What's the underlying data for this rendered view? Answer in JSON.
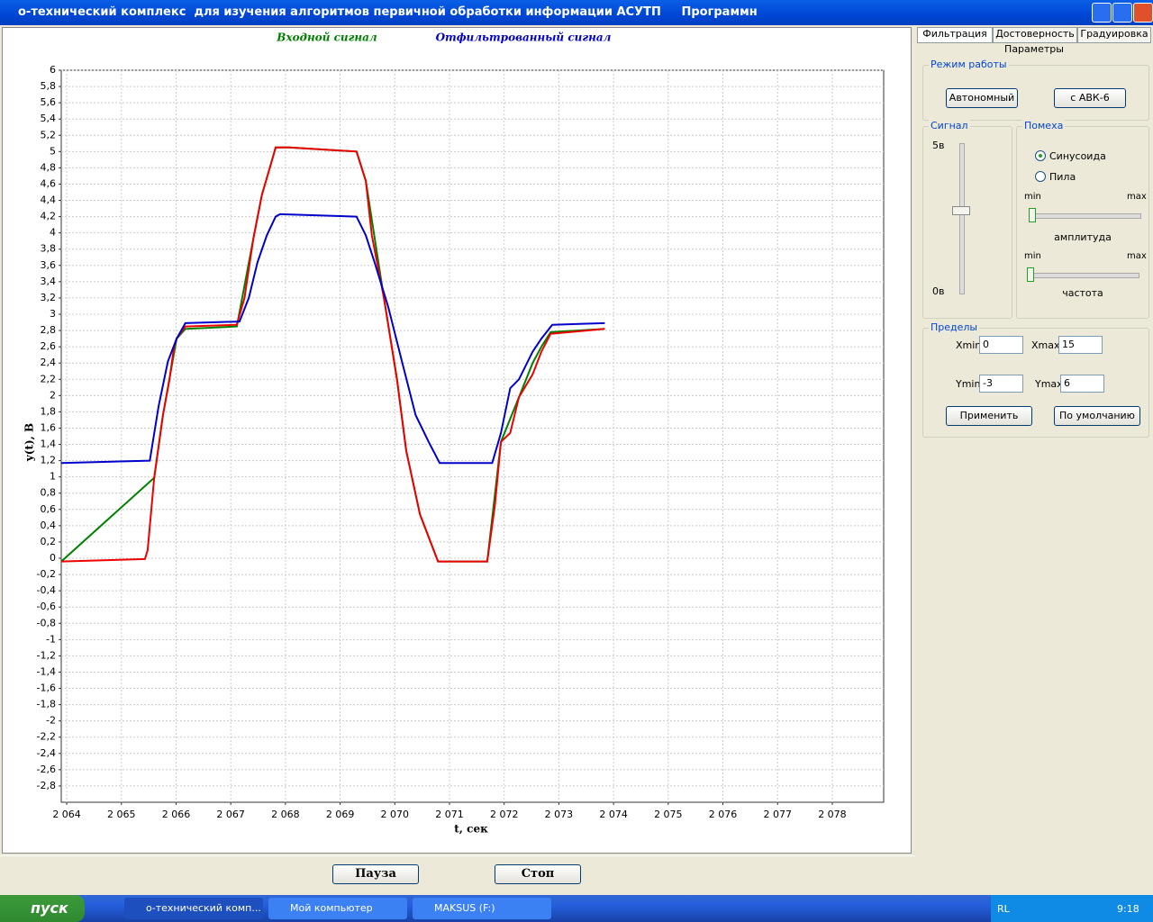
{
  "window": {
    "title": "о-технический комплекс  для изучения алгоритмов первичной обработки информации АСУТП     Программн"
  },
  "chart_data": {
    "type": "line",
    "y_label": "y(t), В",
    "x_label": "t, сек",
    "xlim": [
      2063.9,
      2078.94
    ],
    "ylim": [
      -3,
      6
    ],
    "grid": true,
    "xticks": [
      {
        "value": 2064,
        "label": "2 064"
      },
      {
        "value": 2065,
        "label": "2 065"
      },
      {
        "value": 2066,
        "label": "2 066"
      },
      {
        "value": 2067,
        "label": "2 067"
      },
      {
        "value": 2068,
        "label": "2 068"
      },
      {
        "value": 2069,
        "label": "2 069"
      },
      {
        "value": 2070,
        "label": "2 070"
      },
      {
        "value": 2071,
        "label": "2 071"
      },
      {
        "value": 2072,
        "label": "2 072"
      },
      {
        "value": 2073,
        "label": "2 073"
      },
      {
        "value": 2074,
        "label": "2 074"
      },
      {
        "value": 2075,
        "label": "2 075"
      },
      {
        "value": 2076,
        "label": "2 076"
      },
      {
        "value": 2077,
        "label": "2 077"
      },
      {
        "value": 2078,
        "label": "2 078"
      }
    ],
    "yticks": [
      6,
      {
        "value": 5.8,
        "label": "5,8"
      },
      {
        "value": 5.6,
        "label": "5,6"
      },
      {
        "value": 5.4,
        "label": "5,4"
      },
      {
        "value": 5.2,
        "label": "5,2"
      },
      5,
      {
        "value": 4.8,
        "label": "4,8"
      },
      {
        "value": 4.6,
        "label": "4,6"
      },
      {
        "value": 4.4,
        "label": "4,4"
      },
      {
        "value": 4.2,
        "label": "4,2"
      },
      4,
      {
        "value": 3.8,
        "label": "3,8"
      },
      {
        "value": 3.6,
        "label": "3,6"
      },
      {
        "value": 3.4,
        "label": "3,4"
      },
      {
        "value": 3.2,
        "label": "3,2"
      },
      3,
      {
        "value": 2.8,
        "label": "2,8"
      },
      {
        "value": 2.6,
        "label": "2,6"
      },
      {
        "value": 2.4,
        "label": "2,4"
      },
      {
        "value": 2.2,
        "label": "2,2"
      },
      2,
      {
        "value": 1.8,
        "label": "1,8"
      },
      {
        "value": 1.6,
        "label": "1,6"
      },
      {
        "value": 1.4,
        "label": "1,4"
      },
      {
        "value": 1.2,
        "label": "1,2"
      },
      1,
      {
        "value": 0.8,
        "label": "0,8"
      },
      {
        "value": 0.6,
        "label": "0,6"
      },
      {
        "value": 0.4,
        "label": "0,4"
      },
      {
        "value": 0.2,
        "label": "0,2"
      },
      0,
      {
        "value": -0.2,
        "label": "-0,2"
      },
      {
        "value": -0.4,
        "label": "-0,4"
      },
      {
        "value": -0.6,
        "label": "-0,6"
      },
      {
        "value": -0.8,
        "label": "-0,8"
      },
      -1,
      {
        "value": -1.2,
        "label": "-1,2"
      },
      {
        "value": -1.4,
        "label": "-1,4"
      },
      {
        "value": -1.6,
        "label": "-1,6"
      },
      {
        "value": -1.8,
        "label": "-1,8"
      },
      -2,
      {
        "value": -2.2,
        "label": "-2,2"
      },
      {
        "value": -2.4,
        "label": "-2,4"
      },
      {
        "value": -2.6,
        "label": "-2,6"
      },
      {
        "value": -2.8,
        "label": "-2,8"
      }
    ],
    "series": [
      {
        "name": "Входной сигнал",
        "color": "#008000",
        "x": [
          2063.9,
          2065.6,
          2065.76,
          2066.01,
          2066.17,
          2067.11,
          2067.41,
          2067.57,
          2067.74,
          2067.82,
          2068.07,
          2069.3,
          2069.47,
          2069.8,
          2070.04,
          2070.21,
          2070.46,
          2070.79,
          2071.69,
          2071.94,
          2072.27,
          2072.52,
          2072.68,
          2072.85,
          2073.84
        ],
        "values": [
          -0.04,
          0.99,
          1.76,
          2.7,
          2.82,
          2.85,
          3.92,
          4.47,
          4.86,
          5.05,
          5.05,
          5.0,
          4.64,
          3.2,
          2.2,
          1.32,
          0.54,
          -0.04,
          -0.04,
          1.43,
          1.98,
          2.4,
          2.6,
          2.78,
          2.82
        ]
      },
      {
        "color": "#ee0000",
        "x": [
          2063.9,
          2065.43,
          2065.48,
          2065.6,
          2065.76,
          2065.88,
          2065.96,
          2066.01,
          2066.17,
          2067.11,
          2067.25,
          2067.41,
          2067.57,
          2067.74,
          2067.82,
          2068.07,
          2069.3,
          2069.47,
          2069.58,
          2069.8,
          2070.04,
          2070.21,
          2070.46,
          2070.79,
          2071.69,
          2071.83,
          2071.94,
          2072.11,
          2072.27,
          2072.52,
          2072.68,
          2072.85,
          2073.84
        ],
        "values": [
          -0.04,
          -0.01,
          0.1,
          0.99,
          1.76,
          2.2,
          2.59,
          2.7,
          2.85,
          2.87,
          3.2,
          3.92,
          4.47,
          4.86,
          5.05,
          5.05,
          5.0,
          4.64,
          3.97,
          3.2,
          2.2,
          1.32,
          0.54,
          -0.04,
          -0.04,
          0.65,
          1.43,
          1.54,
          1.98,
          2.26,
          2.54,
          2.76,
          2.82
        ]
      },
      {
        "name": "Отфильтрованный сигнал",
        "color": "#0000cc",
        "x": [
          2063.9,
          2065.52,
          2065.68,
          2065.85,
          2066.01,
          2066.17,
          2067.16,
          2067.33,
          2067.49,
          2067.66,
          2067.82,
          2067.9,
          2069.3,
          2069.47,
          2069.63,
          2069.88,
          2070.13,
          2070.38,
          2070.62,
          2070.82,
          2071.78,
          2071.94,
          2072.11,
          2072.27,
          2072.52,
          2072.68,
          2072.88,
          2073.84
        ],
        "values": [
          1.17,
          1.2,
          1.87,
          2.42,
          2.7,
          2.89,
          2.91,
          3.2,
          3.64,
          3.97,
          4.2,
          4.23,
          4.2,
          3.97,
          3.64,
          3.09,
          2.42,
          1.76,
          1.43,
          1.17,
          1.17,
          1.54,
          2.09,
          2.2,
          2.54,
          2.7,
          2.87,
          2.89
        ]
      }
    ]
  },
  "controls": {
    "pause": "Пауза",
    "stop": "Стоп"
  },
  "panel": {
    "tabs": [
      "Фильтрация",
      "Достоверность",
      "Градуировка"
    ],
    "subtitle": "Параметры",
    "mode": {
      "title": "Режим работы",
      "buttons": [
        "Автономный",
        "с АВК-6"
      ]
    },
    "signal": {
      "title": "Сигнал",
      "max": "5в",
      "min": "0в"
    },
    "noise": {
      "title": "Помеха",
      "options": [
        "Синусоида",
        "Пила"
      ],
      "min1": "min",
      "max1": "max",
      "amplitude": "амплитуда",
      "min2": "min",
      "max2": "max",
      "frequency": "частота"
    },
    "limits": {
      "title": "Пределы",
      "xmin_label": "Xmin",
      "xmin": 0,
      "xmax_label": "Xmax",
      "xmax": 15,
      "ymin_label": "Ymin",
      "ymin": -3,
      "ymax_label": "Ymax",
      "ymax": 6,
      "apply": "Применить",
      "default": "По умолчанию"
    }
  },
  "taskbar": {
    "start": "пуск",
    "items": [
      "о-технический комп...",
      "Мой компьютер",
      "MAKSUS (F:)"
    ],
    "lang": "RL",
    "time": "9:18"
  }
}
